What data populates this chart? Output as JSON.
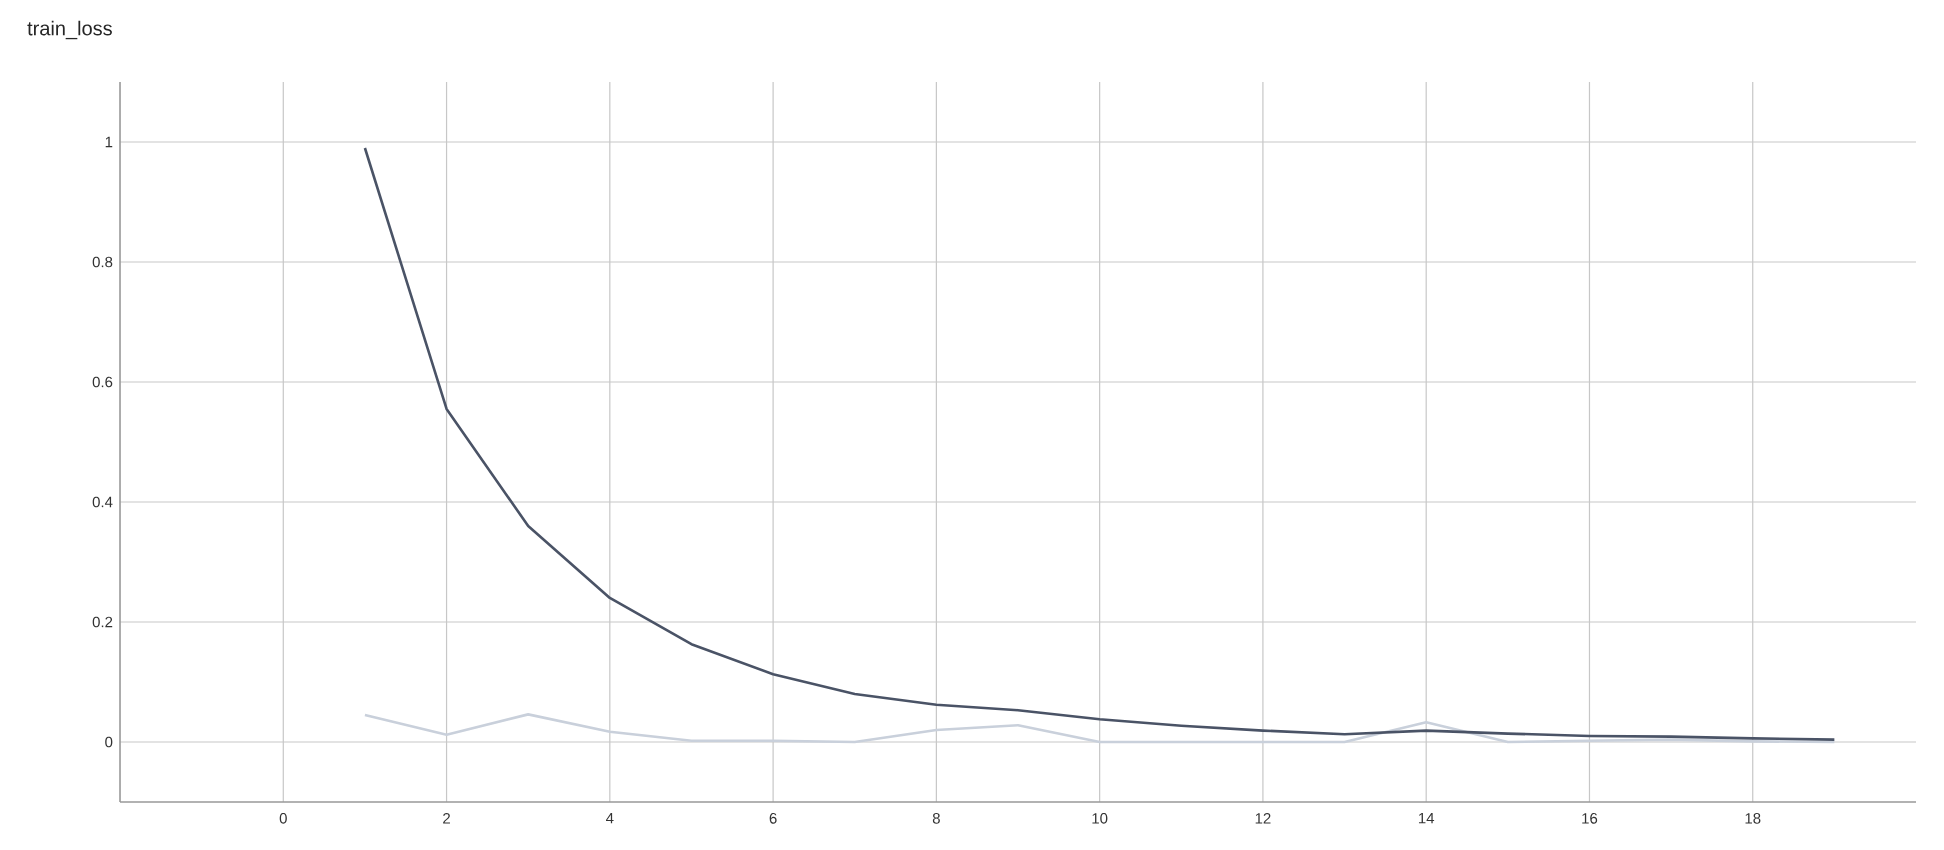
{
  "chart_data": {
    "type": "line",
    "title": "train_loss",
    "x": [
      1,
      2,
      3,
      4,
      5,
      6,
      7,
      8,
      9,
      10,
      11,
      12,
      13,
      14,
      15,
      16,
      17,
      18,
      19
    ],
    "series": [
      {
        "color": "#c9d0db",
        "values": [
          0.045,
          0.012,
          0.046,
          0.017,
          0.002,
          0.002,
          0.0,
          0.02,
          0.028,
          0.0,
          0.0,
          0.0,
          0.0,
          0.033,
          0.0,
          0.002,
          0.004,
          0.001,
          0.0
        ]
      },
      {
        "color": "#4a5366",
        "values": [
          0.99,
          0.555,
          0.36,
          0.24,
          0.163,
          0.113,
          0.08,
          0.062,
          0.053,
          0.038,
          0.027,
          0.019,
          0.013,
          0.019,
          0.014,
          0.01,
          0.009,
          0.006,
          0.004
        ]
      }
    ],
    "xlim": [
      -2,
      20
    ],
    "ylim": [
      -0.1,
      1.1
    ],
    "xticks": [
      0,
      2,
      4,
      6,
      8,
      10,
      12,
      14,
      16,
      18
    ],
    "yticks": [
      0,
      0.2,
      0.4,
      0.6,
      0.8,
      1
    ],
    "grid": true,
    "marker": "none",
    "line_style": "solid"
  }
}
